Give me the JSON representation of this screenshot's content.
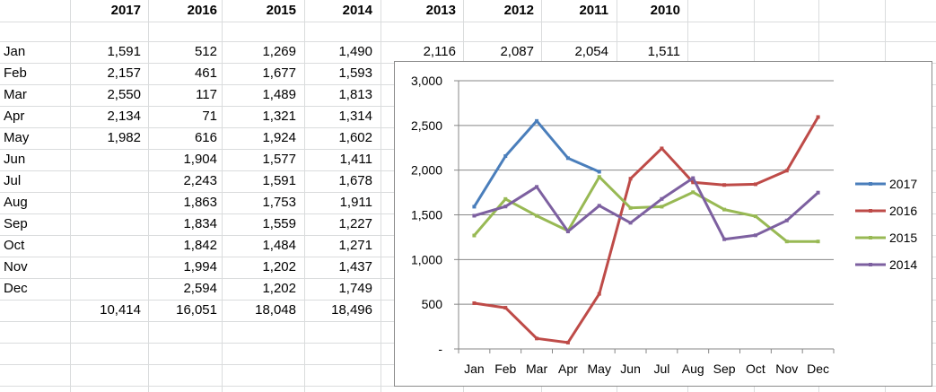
{
  "sheet": {
    "year_headers": [
      "2017",
      "2016",
      "2015",
      "2014",
      "2013",
      "2012",
      "2011",
      "2010"
    ],
    "rows": [
      {
        "label": "Jan",
        "values": [
          "1,591",
          "512",
          "1,269",
          "1,490",
          "2,116",
          "2,087",
          "2,054",
          "1,511"
        ]
      },
      {
        "label": "Feb",
        "values": [
          "2,157",
          "461",
          "1,677",
          "1,593"
        ]
      },
      {
        "label": "Mar",
        "values": [
          "2,550",
          "117",
          "1,489",
          "1,813"
        ]
      },
      {
        "label": "Apr",
        "values": [
          "2,134",
          "71",
          "1,321",
          "1,314"
        ]
      },
      {
        "label": "May",
        "values": [
          "1,982",
          "616",
          "1,924",
          "1,602"
        ]
      },
      {
        "label": "Jun",
        "values": [
          "",
          "1,904",
          "1,577",
          "1,411"
        ]
      },
      {
        "label": "Jul",
        "values": [
          "",
          "2,243",
          "1,591",
          "1,678"
        ]
      },
      {
        "label": "Aug",
        "values": [
          "",
          "1,863",
          "1,753",
          "1,911"
        ]
      },
      {
        "label": "Sep",
        "values": [
          "",
          "1,834",
          "1,559",
          "1,227"
        ]
      },
      {
        "label": "Oct",
        "values": [
          "",
          "1,842",
          "1,484",
          "1,271"
        ]
      },
      {
        "label": "Nov",
        "values": [
          "",
          "1,994",
          "1,202",
          "1,437"
        ]
      },
      {
        "label": "Dec",
        "values": [
          "",
          "2,594",
          "1,202",
          "1,749"
        ]
      }
    ],
    "totals": [
      "10,414",
      "16,051",
      "18,048",
      "18,496"
    ]
  },
  "chart_data": {
    "type": "line",
    "title": "",
    "xlabel": "",
    "ylabel": "",
    "categories": [
      "Jan",
      "Feb",
      "Mar",
      "Apr",
      "May",
      "Jun",
      "Jul",
      "Aug",
      "Sep",
      "Oct",
      "Nov",
      "Dec"
    ],
    "ylim": [
      0,
      3000
    ],
    "yticks": [
      0,
      500,
      1000,
      1500,
      2000,
      2500,
      3000
    ],
    "ytick_labels": [
      "-",
      "500",
      "1,000",
      "1,500",
      "2,000",
      "2,500",
      "3,000"
    ],
    "grid": "horizontal",
    "legend_position": "right",
    "series": [
      {
        "name": "2017",
        "color": "#4a7ebb",
        "values": [
          1591,
          2157,
          2550,
          2134,
          1982,
          null,
          null,
          null,
          null,
          null,
          null,
          null
        ]
      },
      {
        "name": "2016",
        "color": "#be4b48",
        "values": [
          512,
          461,
          117,
          71,
          616,
          1904,
          2243,
          1863,
          1834,
          1842,
          1994,
          2594
        ]
      },
      {
        "name": "2015",
        "color": "#98b954",
        "values": [
          1269,
          1677,
          1489,
          1321,
          1924,
          1577,
          1591,
          1753,
          1559,
          1484,
          1202,
          1202
        ]
      },
      {
        "name": "2014",
        "color": "#7d60a0",
        "values": [
          1490,
          1593,
          1813,
          1314,
          1602,
          1411,
          1678,
          1911,
          1227,
          1271,
          1437,
          1749
        ]
      }
    ]
  }
}
